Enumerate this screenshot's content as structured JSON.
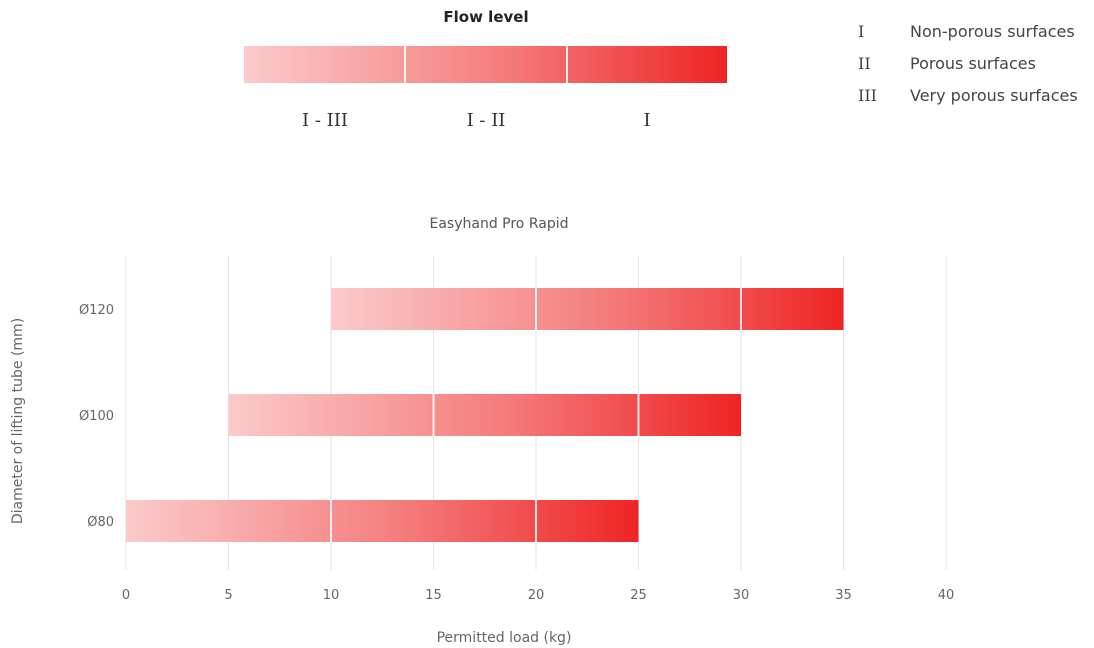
{
  "flow_level": {
    "title": "Flow level",
    "segments": [
      "I - III",
      "I - II",
      "I"
    ],
    "legend": [
      {
        "code": "I",
        "text": "Non-porous surfaces"
      },
      {
        "code": "II",
        "text": "Porous surfaces"
      },
      {
        "code": "III",
        "text": "Very porous surfaces"
      }
    ]
  },
  "colors": {
    "light": "#fbcaca",
    "mid": "#f47a7a",
    "dark": "#ee2424",
    "grid": "#e3e3e3",
    "axis_text": "#666666"
  },
  "chart_data": {
    "type": "bar",
    "orientation": "horizontal",
    "title": "Easyhand Pro Rapid",
    "xlabel": "Permitted load (kg)",
    "ylabel": "Diameter of lifting tube (mm)",
    "xlim": [
      0,
      40
    ],
    "xticks": [
      0,
      5,
      10,
      15,
      20,
      25,
      30,
      35,
      40
    ],
    "grid": true,
    "categories": [
      "Ø120",
      "Ø100",
      "Ø80"
    ],
    "ranges": [
      {
        "category": "Ø120",
        "start": 10,
        "end": 35,
        "dividers": [
          20,
          30
        ]
      },
      {
        "category": "Ø100",
        "start": 5,
        "end": 30,
        "dividers": [
          15,
          25
        ]
      },
      {
        "category": "Ø80",
        "start": 0,
        "end": 25,
        "dividers": [
          10,
          20
        ]
      }
    ]
  }
}
